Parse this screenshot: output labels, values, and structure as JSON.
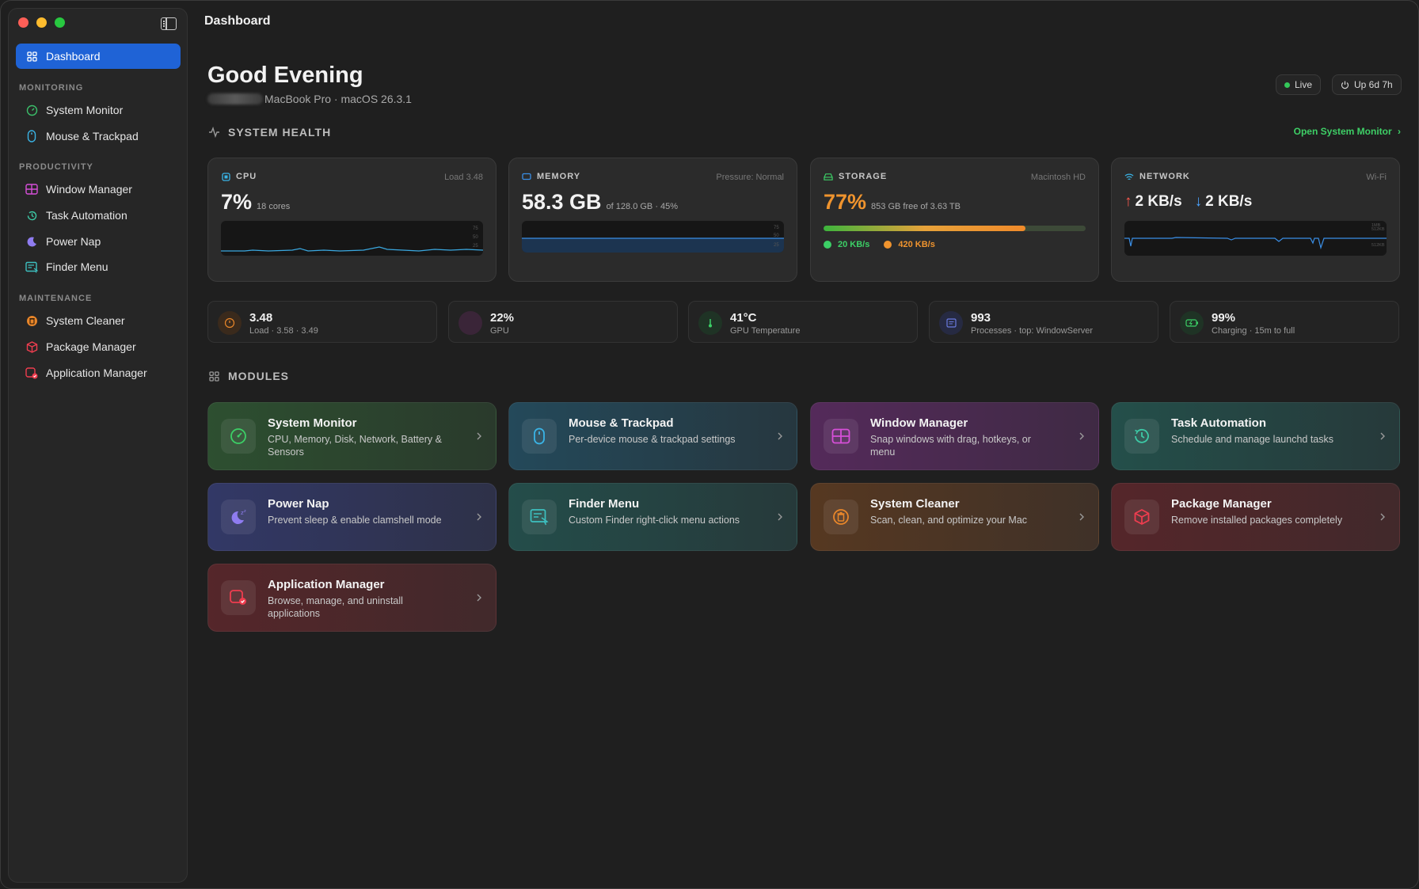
{
  "window": {
    "title": "Dashboard"
  },
  "sidebar": {
    "active": {
      "label": "Dashboard"
    },
    "sections": [
      {
        "label": "MONITORING",
        "items": [
          {
            "label": "System Monitor"
          },
          {
            "label": "Mouse & Trackpad"
          }
        ]
      },
      {
        "label": "PRODUCTIVITY",
        "items": [
          {
            "label": "Window Manager"
          },
          {
            "label": "Task Automation"
          },
          {
            "label": "Power Nap"
          },
          {
            "label": "Finder Menu"
          }
        ]
      },
      {
        "label": "MAINTENANCE",
        "items": [
          {
            "label": "System Cleaner"
          },
          {
            "label": "Package Manager"
          },
          {
            "label": "Application Manager"
          }
        ]
      }
    ]
  },
  "header": {
    "greeting": "Good Evening",
    "device": "MacBook Pro · macOS 26.3.1",
    "live_label": "Live",
    "uptime_label": "Up 6d 7h"
  },
  "system_health": {
    "heading": "SYSTEM HEALTH",
    "open_link": "Open System Monitor",
    "cpu": {
      "label": "CPU",
      "meta": "Load 3.48",
      "value": "7%",
      "sub": "18 cores"
    },
    "memory": {
      "label": "MEMORY",
      "meta": "Pressure: Normal",
      "value": "58.3 GB",
      "sub": "of 128.0 GB · 45%"
    },
    "storage": {
      "label": "STORAGE",
      "meta": "Macintosh HD",
      "value": "77%",
      "sub": "853 GB free of 3.63 TB",
      "used_fraction": 0.77,
      "read": "20 KB/s",
      "write": "420 KB/s"
    },
    "network": {
      "label": "NETWORK",
      "meta": "Wi-Fi",
      "up": "2 KB/s",
      "down": "2 KB/s"
    }
  },
  "stats": [
    {
      "value": "3.48",
      "sub": "Load · 3.58 · 3.49"
    },
    {
      "value": "22%",
      "sub": "GPU"
    },
    {
      "value": "41°C",
      "sub": "GPU Temperature"
    },
    {
      "value": "993",
      "sub": "Processes · top: WindowServer"
    },
    {
      "value": "99%",
      "sub": "Charging · 15m to full"
    }
  ],
  "modules": {
    "heading": "MODULES",
    "items": [
      {
        "title": "System Monitor",
        "desc": "CPU, Memory, Disk, Network, Battery & Sensors",
        "color": "#2c4a2f"
      },
      {
        "title": "Mouse & Trackpad",
        "desc": "Per-device mouse & trackpad settings",
        "color": "#24424d"
      },
      {
        "title": "Window Manager",
        "desc": "Snap windows with drag, hotkeys, or menu",
        "color": "#4a2550"
      },
      {
        "title": "Task Automation",
        "desc": "Schedule and manage launchd tasks",
        "color": "#234844"
      },
      {
        "title": "Power Nap",
        "desc": "Prevent sleep & enable clamshell mode",
        "color": "#2f3358"
      },
      {
        "title": "Finder Menu",
        "desc": "Custom Finder right-click menu actions",
        "color": "#244644"
      },
      {
        "title": "System Cleaner",
        "desc": "Scan, clean, and optimize your Mac",
        "color": "#4d3423"
      },
      {
        "title": "Package Manager",
        "desc": "Remove installed packages completely",
        "color": "#4d2327"
      },
      {
        "title": "Application Manager",
        "desc": "Browse, manage, and uninstall applications",
        "color": "#4d2327"
      }
    ]
  }
}
